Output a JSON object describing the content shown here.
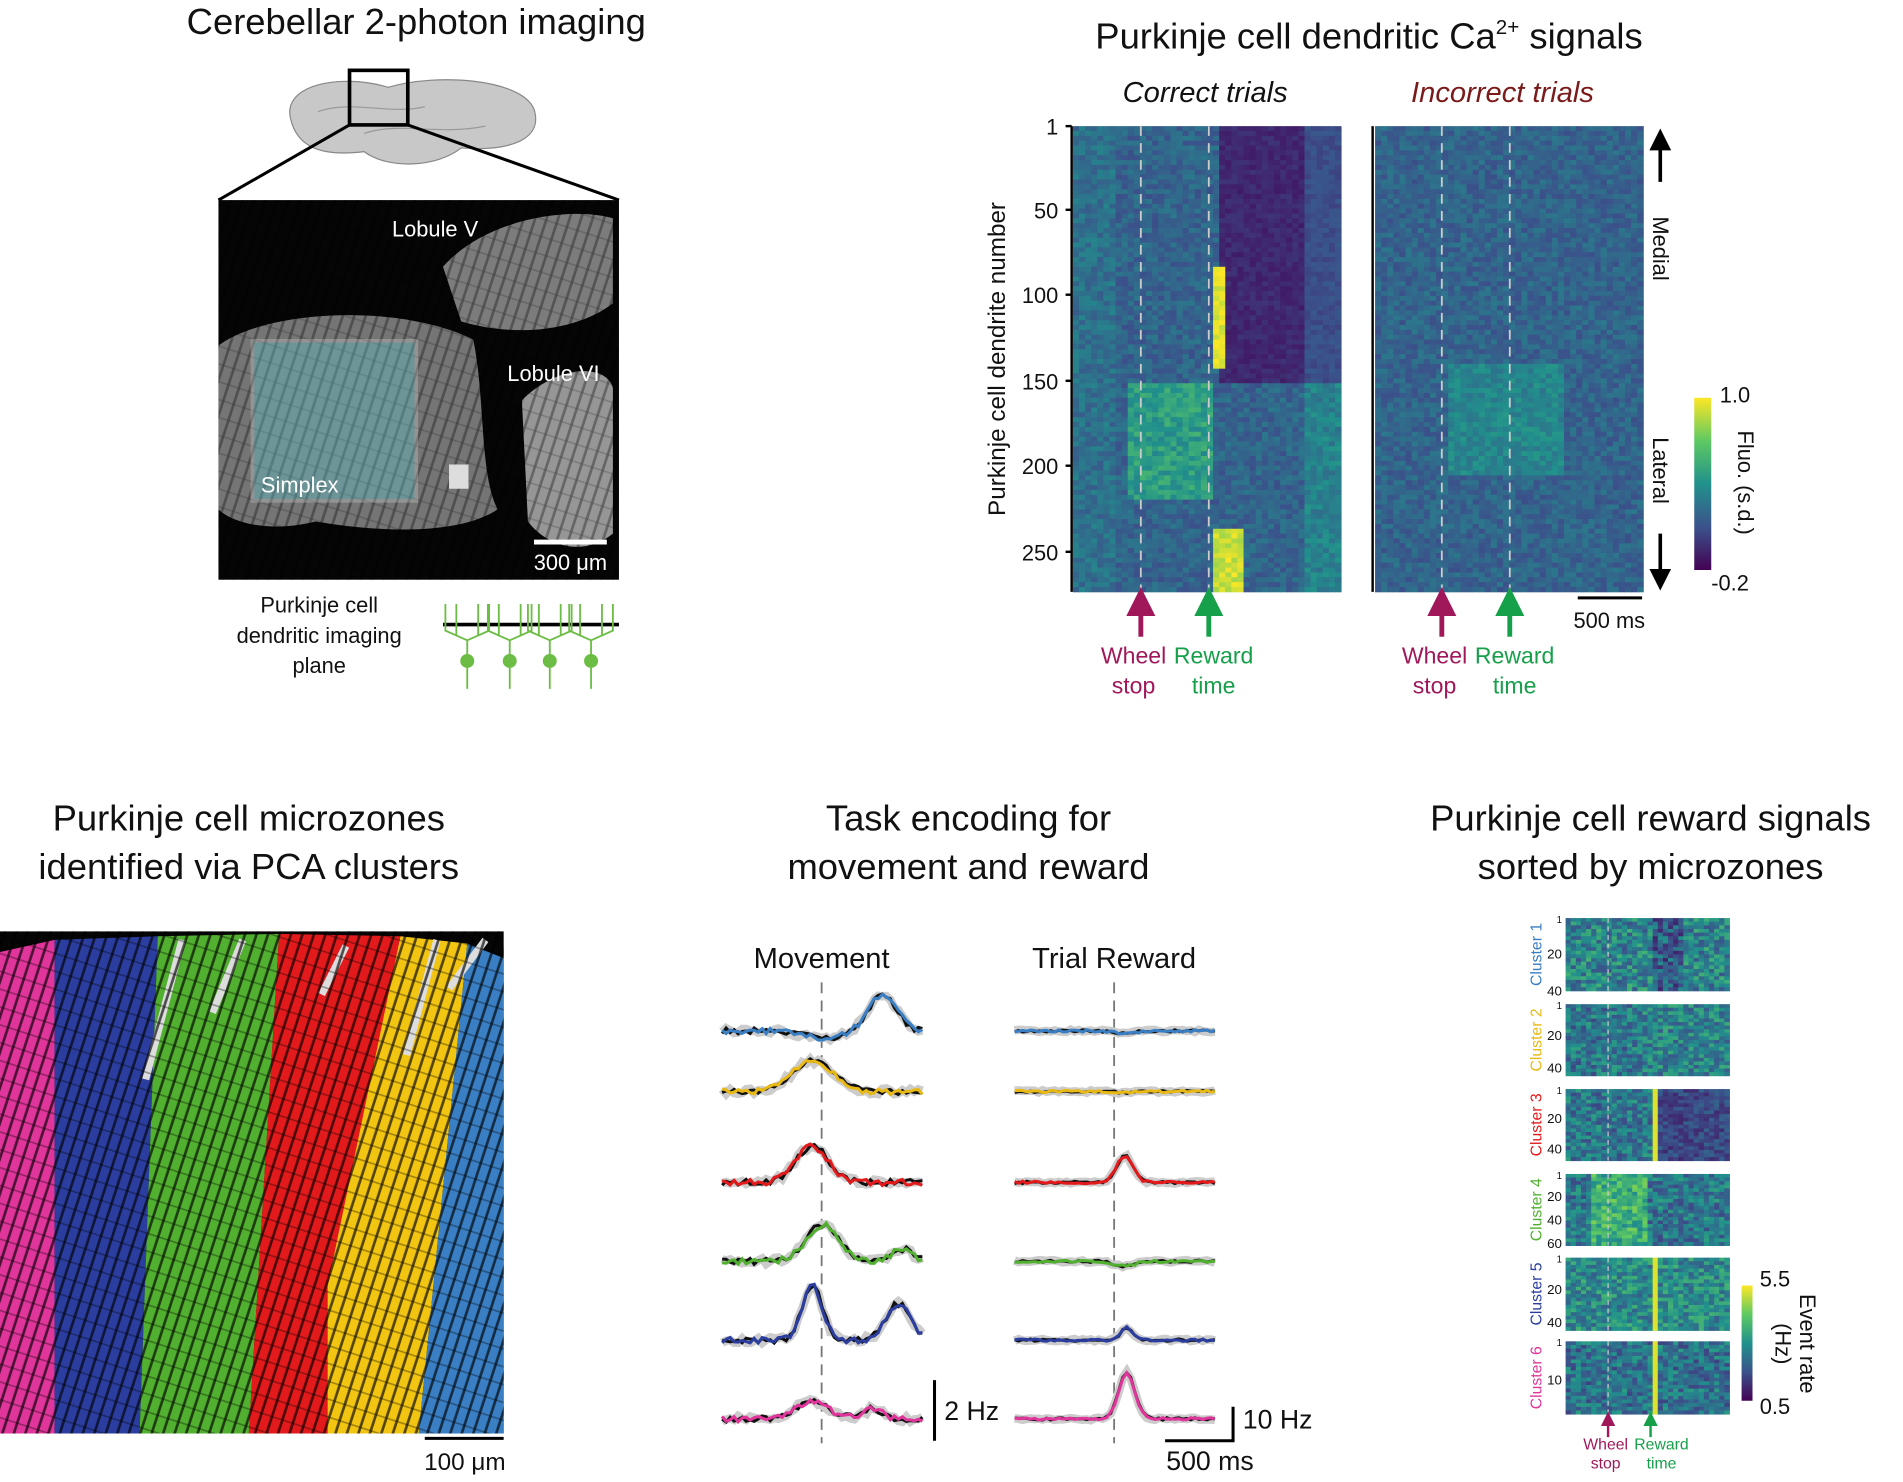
{
  "panel_a": {
    "title": "Cerebellar 2-photon imaging",
    "lobule_v": "Lobule V",
    "lobule_vi": "Lobule VI",
    "simplex": "Simplex",
    "scale_bar": "300 μm",
    "plane_label": [
      "Purkinje cell",
      "dendritic imaging",
      "plane"
    ]
  },
  "panel_b": {
    "title": "Purkinje cell dendritic Ca",
    "title_sup": "2+",
    "title_end": " signals",
    "conditions": [
      "Correct trials",
      "Incorrect trials"
    ],
    "y_axis_label": "Purkinje cell dendrite number",
    "yticks": [
      "1",
      "50",
      "100",
      "150",
      "200",
      "250"
    ],
    "medial": "Medial",
    "lateral": "Lateral",
    "colorbar_label": "Fluo. (s.d.)",
    "colorbar_max": "1.0",
    "colorbar_min": "-0.2",
    "scale_bar": "500 ms",
    "events": [
      [
        "Wheel",
        "stop"
      ],
      [
        "Reward",
        "time"
      ]
    ]
  },
  "panel_c": {
    "title": [
      "Purkinje cell microzones",
      "identified via PCA clusters"
    ],
    "scale_bar": "100 μm"
  },
  "panel_d": {
    "title": [
      "Task encoding for",
      "movement and reward"
    ],
    "columns": [
      "Movement",
      "Trial Reward"
    ],
    "scale_movement": "2 Hz",
    "scale_reward": "10 Hz",
    "scale_time": "500 ms"
  },
  "panel_e": {
    "title": [
      "Purkinje cell reward signals",
      "sorted by microzones"
    ],
    "clusters": [
      {
        "name": "Cluster 1",
        "color": "#3a7fc4",
        "yticks": [
          "1",
          "20",
          "40"
        ]
      },
      {
        "name": "Cluster 2",
        "color": "#e8b814",
        "yticks": [
          "1",
          "20",
          "40"
        ]
      },
      {
        "name": "Cluster 3",
        "color": "#e31a1c",
        "yticks": [
          "1",
          "20",
          "40"
        ]
      },
      {
        "name": "Cluster 4",
        "color": "#52b030",
        "yticks": [
          "1",
          "20",
          "40",
          "60"
        ]
      },
      {
        "name": "Cluster 5",
        "color": "#2b3ea0",
        "yticks": [
          "1",
          "20",
          "40"
        ]
      },
      {
        "name": "Cluster 6",
        "color": "#e0359a",
        "yticks": [
          "1",
          "10"
        ]
      }
    ],
    "colorbar_label": [
      "Event rate",
      "(Hz)"
    ],
    "colorbar_max": "5.5",
    "colorbar_min": "0.5",
    "events": [
      [
        "Wheel",
        "stop"
      ],
      [
        "Reward",
        "time"
      ]
    ]
  }
}
